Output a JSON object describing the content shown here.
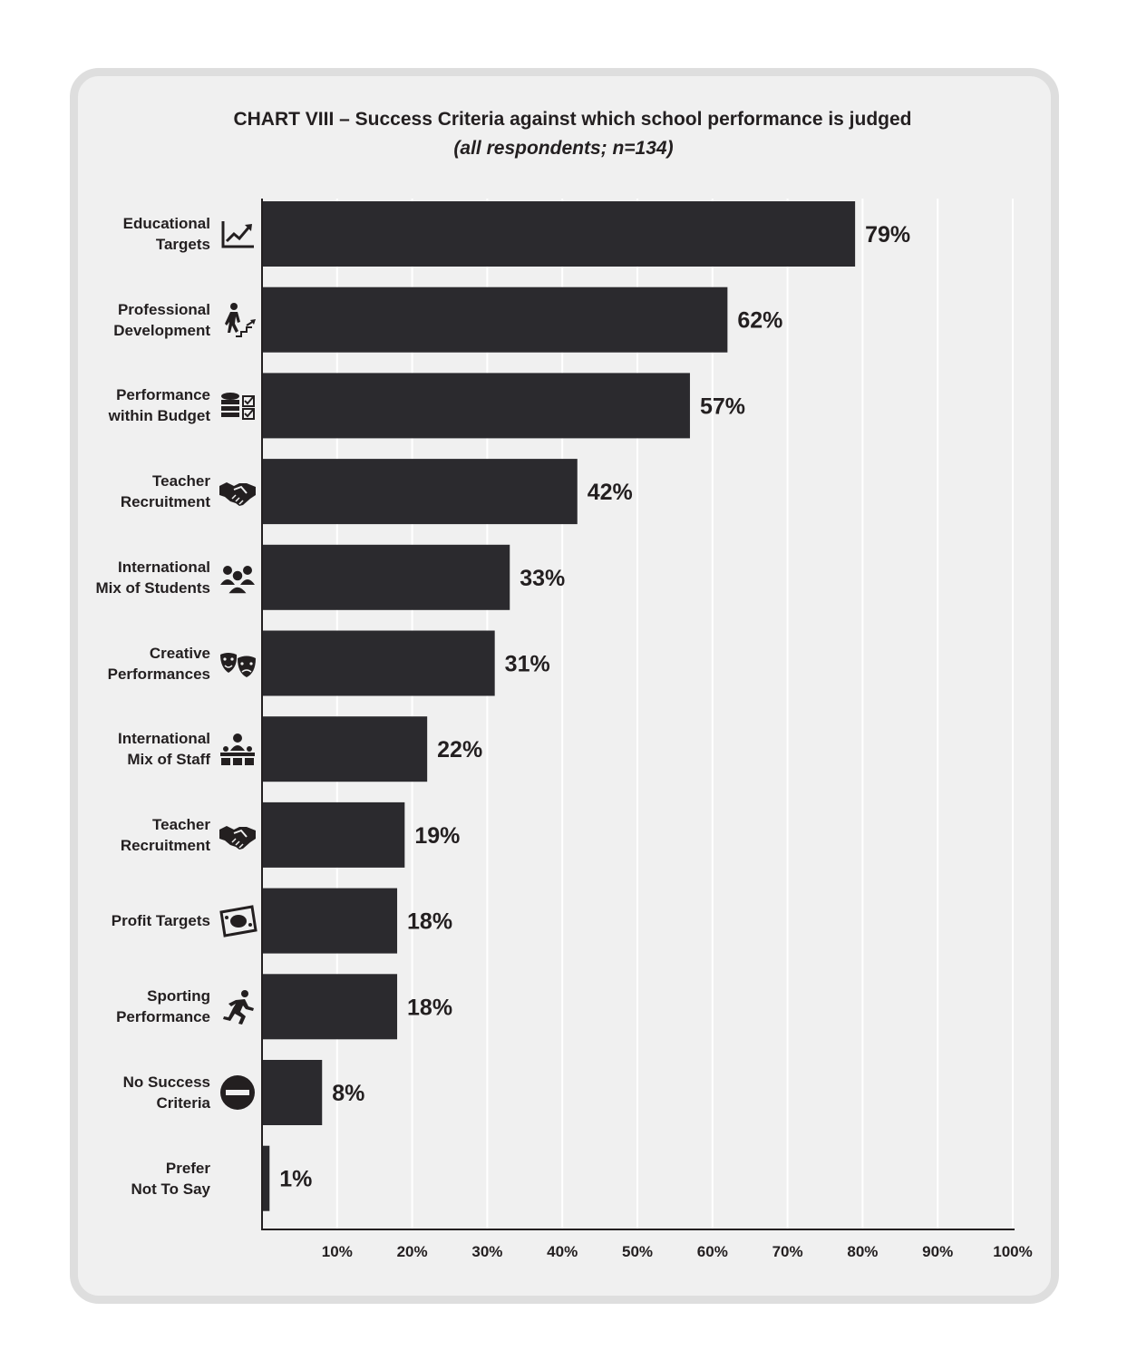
{
  "chart_data": {
    "type": "bar",
    "orientation": "horizontal",
    "title": "CHART VIII – Success Criteria against which school performance is judged",
    "subtitle": "(all respondents; n=134)",
    "xlim": [
      0,
      100
    ],
    "x_ticks": [
      "10%",
      "20%",
      "30%",
      "40%",
      "50%",
      "60%",
      "70%",
      "80%",
      "90%",
      "100%"
    ],
    "grid": "vertical",
    "bar_color": "#2b2a2e",
    "background_color": "#f0f0f0",
    "categories": [
      {
        "label": "Educational\nTargets",
        "value": 79,
        "value_label": "79%",
        "icon": "line-chart-up-icon"
      },
      {
        "label": "Professional\nDevelopment",
        "value": 62,
        "value_label": "62%",
        "icon": "person-climbing-stairs-icon"
      },
      {
        "label": "Performance\nwithin Budget",
        "value": 57,
        "value_label": "57%",
        "icon": "coins-check-icon"
      },
      {
        "label": "Teacher\nRecruitment",
        "value": 42,
        "value_label": "42%",
        "icon": "handshake-icon"
      },
      {
        "label": "International\nMix of Students",
        "value": 33,
        "value_label": "33%",
        "icon": "student-group-icon"
      },
      {
        "label": "Creative\nPerformances",
        "value": 31,
        "value_label": "31%",
        "icon": "theatre-masks-icon"
      },
      {
        "label": "International\nMix of Staff",
        "value": 22,
        "value_label": "22%",
        "icon": "staff-group-icon"
      },
      {
        "label": "Teacher\nRecruitment",
        "value": 19,
        "value_label": "19%",
        "icon": "handshake-icon"
      },
      {
        "label": "Profit Targets",
        "value": 18,
        "value_label": "18%",
        "icon": "banknote-icon"
      },
      {
        "label": "Sporting\nPerformance",
        "value": 18,
        "value_label": "18%",
        "icon": "runner-icon"
      },
      {
        "label": "No Success\nCriteria",
        "value": 8,
        "value_label": "8%",
        "icon": "no-entry-icon"
      },
      {
        "label": "Prefer\nNot To Say",
        "value": 1,
        "value_label": "1%",
        "icon": ""
      }
    ]
  }
}
